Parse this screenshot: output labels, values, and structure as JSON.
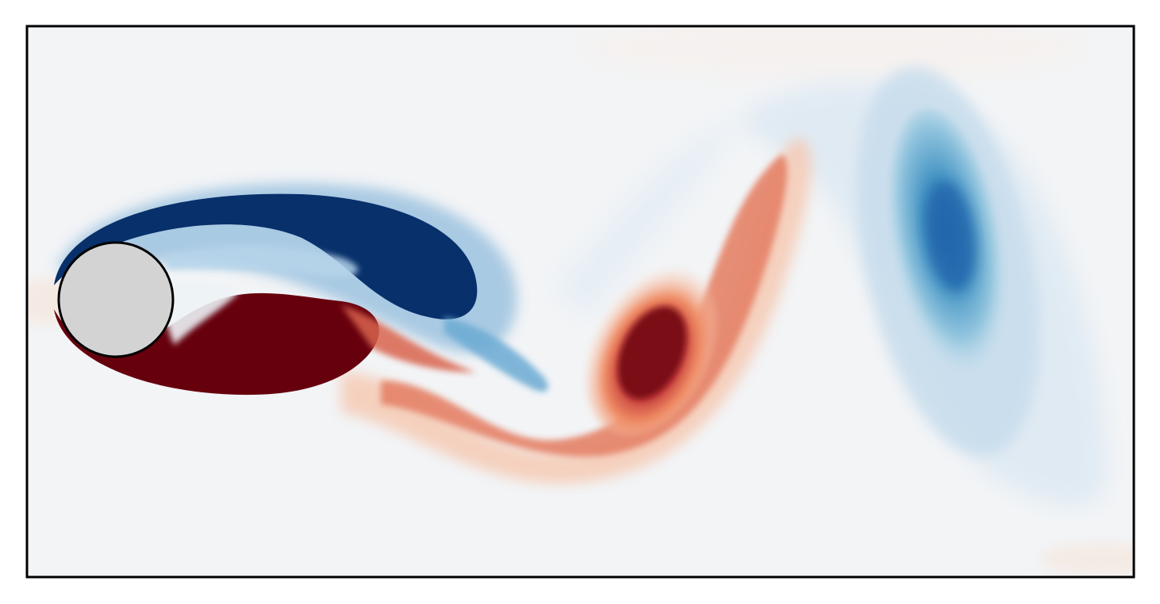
{
  "figure": {
    "colors": {
      "background": "#f2f4f6",
      "frame": "#000000",
      "cylinder_fill": "#d3d3d3",
      "negative_strong": "#08306b",
      "negative_mid": "#2a6cb5",
      "negative_light": "#9ecae1",
      "positive_strong": "#67000d",
      "positive_mid": "#c0282d",
      "positive_light": "#f4a582",
      "neutral_warm": "#f7f2ef"
    }
  }
}
